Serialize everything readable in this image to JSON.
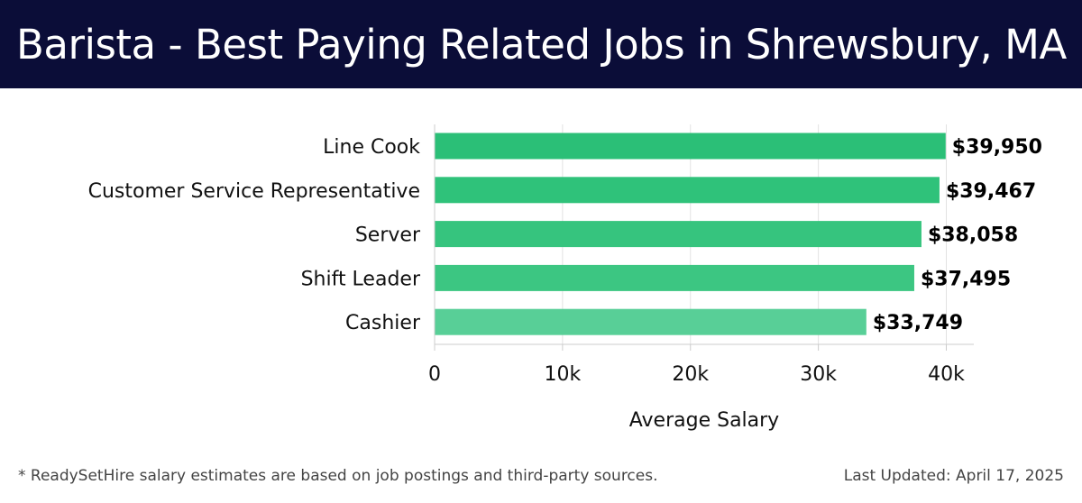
{
  "header": {
    "title": "Barista - Best Paying Related Jobs in Shrewsbury, MA",
    "background_color": "#0b0d38"
  },
  "chart_data": {
    "type": "bar",
    "orientation": "horizontal",
    "title": "Barista - Best Paying Related Jobs in Shrewsbury, MA",
    "categories": [
      "Line Cook",
      "Customer Service Representative",
      "Server",
      "Shift Leader",
      "Cashier"
    ],
    "values": [
      39950,
      39467,
      38058,
      37495,
      33749
    ],
    "value_labels": [
      "$39,950",
      "$39,467",
      "$38,058",
      "$37,495",
      "$33,749"
    ],
    "bar_colors": [
      "#2bbf77",
      "#2fc27a",
      "#36c47e",
      "#3cc682",
      "#58cf97"
    ],
    "xlabel": "Average Salary",
    "ylabel": "",
    "xlim": [
      0,
      42000
    ],
    "x_ticks": [
      0,
      10000,
      20000,
      30000,
      40000
    ],
    "x_tick_labels": [
      "0",
      "10k",
      "20k",
      "30k",
      "40k"
    ],
    "grid": true
  },
  "footer": {
    "note": "* ReadySetHire salary estimates are based on job postings and third-party sources.",
    "updated": "Last Updated: April 17, 2025"
  }
}
